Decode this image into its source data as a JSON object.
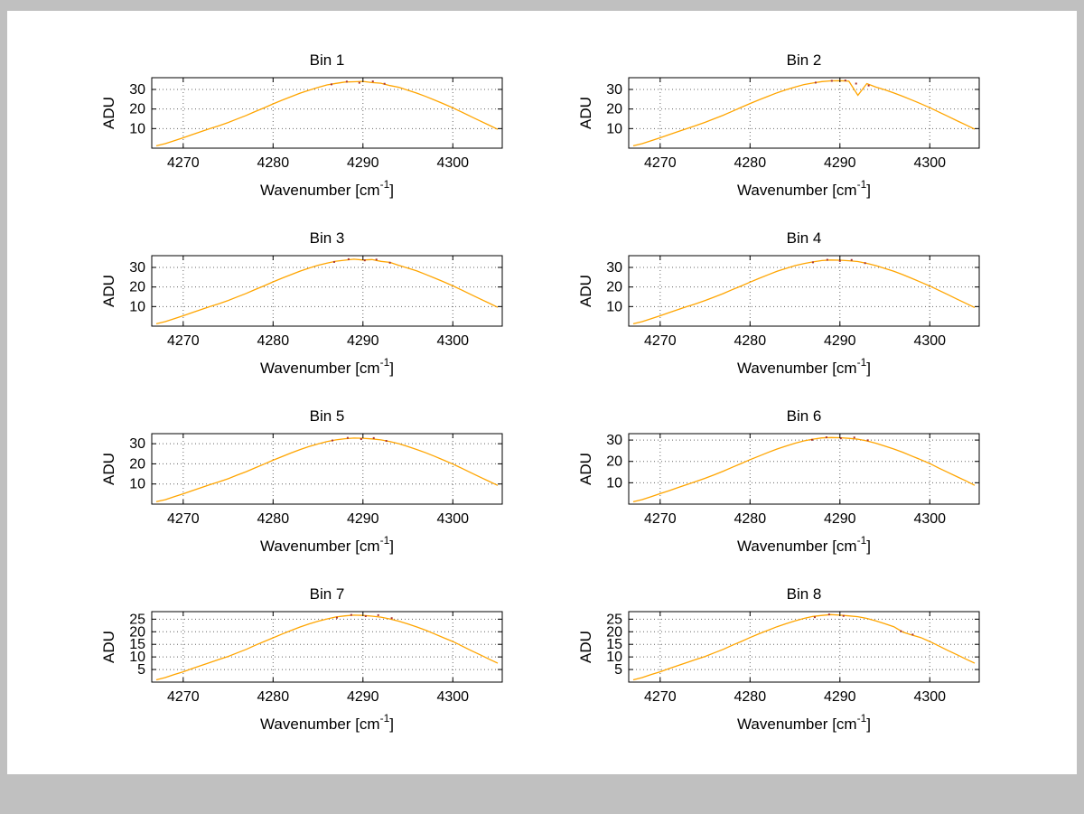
{
  "figure": {
    "background": "#ffffff",
    "window_background": "#c0c0c0",
    "axis_color": "#000000",
    "grid_color": "#666666",
    "line_color": "#ffa500",
    "overlay_color": "#aa3333"
  },
  "x_values": [
    4267,
    4268,
    4269,
    4270,
    4271,
    4272,
    4273,
    4274,
    4275,
    4276,
    4277,
    4278,
    4279,
    4280,
    4281,
    4282,
    4283,
    4284,
    4285,
    4286,
    4287,
    4288,
    4289,
    4290,
    4291,
    4292,
    4293,
    4294,
    4295,
    4296,
    4297,
    4298,
    4299,
    4300,
    4301,
    4302,
    4303,
    4304,
    4305
  ],
  "chart_data": [
    {
      "type": "line",
      "title": "Bin 1",
      "xlabel": "Wavenumber [cm",
      "xlabel_superscript": "-1",
      "xlabel_suffix": "]",
      "ylabel": "ADU",
      "xlim": [
        4266.5,
        4305.5
      ],
      "ylim": [
        0,
        36
      ],
      "xticks": [
        4270,
        4280,
        4290,
        4300
      ],
      "yticks": [
        10,
        20,
        30
      ],
      "grid": true,
      "legend": "none",
      "values": [
        1.2,
        2.3,
        3.8,
        5.3,
        6.9,
        8.5,
        10.0,
        11.5,
        13.1,
        14.9,
        16.7,
        18.7,
        20.6,
        22.6,
        24.5,
        26.3,
        28.1,
        29.6,
        31.0,
        32.3,
        33.1,
        33.8,
        33.9,
        34.1,
        33.5,
        33.2,
        32.0,
        31.1,
        29.6,
        28.1,
        26.4,
        24.5,
        22.6,
        20.6,
        18.4,
        16.2,
        14.0,
        11.8,
        9.6
      ],
      "overlay": {
        "x": [
          4286.5,
          4288.2,
          4289.6,
          4291.1,
          4292.4
        ],
        "y": [
          32.6,
          34.0,
          33.4,
          34.1,
          32.9
        ]
      }
    },
    {
      "type": "line",
      "title": "Bin 2",
      "xlabel": "Wavenumber [cm",
      "xlabel_superscript": "-1",
      "xlabel_suffix": "]",
      "ylabel": "ADU",
      "xlim": [
        4266.5,
        4305.5
      ],
      "ylim": [
        0,
        36
      ],
      "xticks": [
        4270,
        4280,
        4290,
        4300
      ],
      "yticks": [
        10,
        20,
        30
      ],
      "grid": true,
      "legend": "none",
      "values": [
        1.2,
        2.3,
        3.8,
        5.3,
        6.9,
        8.5,
        10.0,
        11.6,
        13.2,
        15.0,
        16.8,
        18.8,
        20.8,
        22.8,
        24.7,
        26.5,
        28.3,
        29.8,
        31.2,
        32.5,
        33.3,
        34.0,
        34.4,
        34.5,
        34.2,
        27.0,
        33.0,
        31.2,
        29.8,
        28.2,
        26.5,
        24.6,
        22.7,
        20.7,
        18.5,
        16.3,
        14.1,
        11.9,
        9.7
      ],
      "overlay": {
        "x": [
          4287.3,
          4289.1,
          4290.6,
          4291.8,
          4293.2
        ],
        "y": [
          33.5,
          34.4,
          34.6,
          33.0,
          32.0
        ]
      }
    },
    {
      "type": "line",
      "title": "Bin 3",
      "xlabel": "Wavenumber [cm",
      "xlabel_superscript": "-1",
      "xlabel_suffix": "]",
      "ylabel": "ADU",
      "xlim": [
        4266.5,
        4305.5
      ],
      "ylim": [
        0,
        36
      ],
      "xticks": [
        4270,
        4280,
        4290,
        4300
      ],
      "yticks": [
        10,
        20,
        30
      ],
      "grid": true,
      "legend": "none",
      "values": [
        1.2,
        2.3,
        3.8,
        5.3,
        6.9,
        8.5,
        10.0,
        11.5,
        13.1,
        14.9,
        16.7,
        18.7,
        20.6,
        22.6,
        24.5,
        26.3,
        28.1,
        29.7,
        31.1,
        32.2,
        33.2,
        33.7,
        34.2,
        33.8,
        34.0,
        33.1,
        32.6,
        31.0,
        29.7,
        28.2,
        26.4,
        24.5,
        22.6,
        20.6,
        18.4,
        16.2,
        14.0,
        11.8,
        9.6
      ],
      "overlay": {
        "x": [
          4286.8,
          4288.4,
          4290.2,
          4291.5,
          4293.0
        ],
        "y": [
          32.8,
          34.2,
          33.6,
          34.0,
          32.4
        ]
      }
    },
    {
      "type": "line",
      "title": "Bin 4",
      "xlabel": "Wavenumber [cm",
      "xlabel_superscript": "-1",
      "xlabel_suffix": "]",
      "ylabel": "ADU",
      "xlim": [
        4266.5,
        4305.5
      ],
      "ylim": [
        0,
        36
      ],
      "xticks": [
        4270,
        4280,
        4290,
        4300
      ],
      "yticks": [
        10,
        20,
        30
      ],
      "grid": true,
      "legend": "none",
      "values": [
        1.2,
        2.3,
        3.8,
        5.3,
        6.9,
        8.5,
        10.0,
        11.5,
        13.1,
        14.8,
        16.6,
        18.6,
        20.5,
        22.5,
        24.4,
        26.2,
        28.0,
        29.5,
        30.9,
        32.0,
        32.8,
        33.5,
        33.8,
        33.7,
        33.4,
        33.0,
        32.1,
        30.9,
        29.5,
        28.0,
        26.3,
        24.4,
        22.5,
        20.5,
        18.3,
        16.1,
        13.9,
        11.7,
        9.5
      ],
      "overlay": {
        "x": [
          4287.0,
          4288.6,
          4290.0,
          4291.3,
          4292.8
        ],
        "y": [
          32.6,
          33.9,
          33.3,
          33.8,
          32.2
        ]
      }
    },
    {
      "type": "line",
      "title": "Bin 5",
      "xlabel": "Wavenumber [cm",
      "xlabel_superscript": "-1",
      "xlabel_suffix": "]",
      "ylabel": "ADU",
      "xlim": [
        4266.5,
        4305.5
      ],
      "ylim": [
        0,
        35
      ],
      "xticks": [
        4270,
        4280,
        4290,
        4300
      ],
      "yticks": [
        10,
        20,
        30
      ],
      "grid": true,
      "legend": "none",
      "values": [
        1.2,
        2.2,
        3.7,
        5.1,
        6.7,
        8.2,
        9.7,
        11.1,
        12.6,
        14.4,
        16.1,
        18.0,
        19.9,
        21.8,
        23.6,
        25.4,
        27.1,
        28.6,
        29.9,
        31.1,
        31.9,
        32.5,
        32.8,
        32.7,
        32.4,
        31.9,
        31.1,
        30.0,
        28.6,
        27.1,
        25.5,
        23.7,
        21.8,
        19.9,
        17.8,
        15.6,
        13.5,
        11.4,
        9.3
      ],
      "overlay": {
        "x": [
          4286.6,
          4288.3,
          4289.8,
          4291.2,
          4292.6
        ],
        "y": [
          31.6,
          32.9,
          32.3,
          32.8,
          31.4
        ]
      }
    },
    {
      "type": "line",
      "title": "Bin 6",
      "xlabel": "Wavenumber [cm",
      "xlabel_superscript": "-1",
      "xlabel_suffix": "]",
      "ylabel": "ADU",
      "xlim": [
        4266.5,
        4305.5
      ],
      "ylim": [
        0,
        33
      ],
      "xticks": [
        4270,
        4280,
        4290,
        4300
      ],
      "yticks": [
        10,
        20,
        30
      ],
      "grid": true,
      "legend": "none",
      "values": [
        1.1,
        2.1,
        3.5,
        4.9,
        6.3,
        7.8,
        9.2,
        10.6,
        12.1,
        13.7,
        15.4,
        17.2,
        19.0,
        20.8,
        22.5,
        24.2,
        25.8,
        27.2,
        28.5,
        29.6,
        30.4,
        31.0,
        31.2,
        31.1,
        30.8,
        30.4,
        29.6,
        28.5,
        27.2,
        25.8,
        24.3,
        22.5,
        20.8,
        19.0,
        16.9,
        14.9,
        12.9,
        10.9,
        8.8
      ],
      "overlay": {
        "x": [
          4286.9,
          4288.5,
          4290.1,
          4291.6,
          4293.1
        ],
        "y": [
          30.1,
          31.3,
          30.8,
          31.2,
          29.9
        ]
      }
    },
    {
      "type": "line",
      "title": "Bin 7",
      "xlabel": "Wavenumber [cm",
      "xlabel_superscript": "-1",
      "xlabel_suffix": "]",
      "ylabel": "ADU",
      "xlim": [
        4266.5,
        4305.5
      ],
      "ylim": [
        0,
        28
      ],
      "xticks": [
        4270,
        4280,
        4290,
        4300
      ],
      "yticks": [
        5,
        10,
        15,
        20,
        25
      ],
      "grid": true,
      "legend": "none",
      "values": [
        0.9,
        1.8,
        3.0,
        4.1,
        5.4,
        6.6,
        7.8,
        9.0,
        10.2,
        11.6,
        13.0,
        14.6,
        16.1,
        17.6,
        19.1,
        20.5,
        21.9,
        23.1,
        24.2,
        25.1,
        25.9,
        26.3,
        26.6,
        26.5,
        26.2,
        25.8,
        25.1,
        24.2,
        23.1,
        21.9,
        20.6,
        19.1,
        17.6,
        16.1,
        14.4,
        12.6,
        10.9,
        9.2,
        7.5
      ],
      "overlay": {
        "x": [
          4287.1,
          4288.7,
          4290.3,
          4291.7,
          4293.2
        ],
        "y": [
          25.6,
          26.7,
          26.2,
          26.6,
          25.4
        ]
      }
    },
    {
      "type": "line",
      "title": "Bin 8",
      "xlabel": "Wavenumber [cm",
      "xlabel_superscript": "-1",
      "xlabel_suffix": "]",
      "ylabel": "ADU",
      "xlim": [
        4266.5,
        4305.5
      ],
      "ylim": [
        0,
        28
      ],
      "xticks": [
        4270,
        4280,
        4290,
        4300
      ],
      "yticks": [
        5,
        10,
        15,
        20,
        25
      ],
      "grid": true,
      "legend": "none",
      "values": [
        0.9,
        1.8,
        3.0,
        4.1,
        5.4,
        6.6,
        7.8,
        9.0,
        10.2,
        11.6,
        13.0,
        14.6,
        16.1,
        17.7,
        19.2,
        20.6,
        22.0,
        23.2,
        24.3,
        25.3,
        26.1,
        26.5,
        26.8,
        26.6,
        26.3,
        26.0,
        25.3,
        24.3,
        23.2,
        22.0,
        19.9,
        18.7,
        17.7,
        16.1,
        14.4,
        12.6,
        10.9,
        9.2,
        7.5
      ],
      "overlay": {
        "x": [
          4287.2,
          4288.8,
          4290.4,
          4296.8,
          4298.1
        ],
        "y": [
          25.8,
          26.9,
          26.3,
          20.2,
          18.9
        ]
      }
    }
  ]
}
